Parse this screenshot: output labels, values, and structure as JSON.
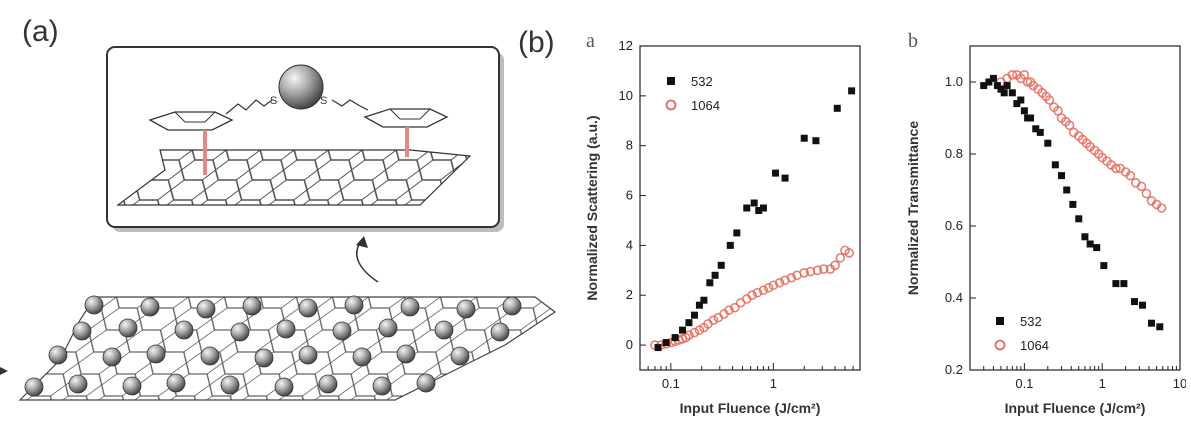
{
  "figure": {
    "panel_a_label": "(a)",
    "panel_b_label": "(b)",
    "sub_a": "a",
    "sub_b": "b",
    "inset_sulfur_left": "S",
    "inset_sulfur_right": "S"
  },
  "chart_data": [
    {
      "type": "scatter",
      "xscale": "log",
      "xlabel": "Input Fluence (J/cm²)",
      "ylabel": "Normalized Scattering (a.u.)",
      "xlim": [
        0.05,
        7
      ],
      "ylim": [
        -1,
        12
      ],
      "x_ticks": [
        0.1,
        1
      ],
      "x_tick_labels": [
        "0.1",
        "1"
      ],
      "y_ticks": [
        0,
        2,
        4,
        6,
        8,
        10,
        12
      ],
      "y_tick_labels": [
        "0",
        "2",
        "4",
        "6",
        "8",
        "10",
        "12"
      ],
      "legend_placement": "top-left",
      "series": [
        {
          "name": "532",
          "color": "#111111",
          "marker": "square",
          "points": [
            [
              0.075,
              -0.1
            ],
            [
              0.09,
              0.1
            ],
            [
              0.11,
              0.3
            ],
            [
              0.13,
              0.6
            ],
            [
              0.15,
              0.9
            ],
            [
              0.17,
              1.2
            ],
            [
              0.19,
              1.6
            ],
            [
              0.21,
              1.8
            ],
            [
              0.24,
              2.5
            ],
            [
              0.27,
              2.8
            ],
            [
              0.31,
              3.2
            ],
            [
              0.38,
              4.0
            ],
            [
              0.44,
              4.5
            ],
            [
              0.55,
              5.5
            ],
            [
              0.65,
              5.7
            ],
            [
              0.72,
              5.4
            ],
            [
              0.8,
              5.5
            ],
            [
              1.05,
              6.9
            ],
            [
              1.3,
              6.7
            ],
            [
              2.0,
              8.3
            ],
            [
              2.6,
              8.2
            ],
            [
              4.2,
              9.5
            ],
            [
              5.8,
              10.2
            ]
          ]
        },
        {
          "name": "1064",
          "color": "#e36a5c",
          "marker": "circle",
          "points": [
            [
              0.07,
              0.0
            ],
            [
              0.08,
              0.0
            ],
            [
              0.09,
              0.05
            ],
            [
              0.1,
              0.1
            ],
            [
              0.11,
              0.15
            ],
            [
              0.12,
              0.2
            ],
            [
              0.13,
              0.25
            ],
            [
              0.14,
              0.3
            ],
            [
              0.15,
              0.4
            ],
            [
              0.17,
              0.5
            ],
            [
              0.19,
              0.6
            ],
            [
              0.21,
              0.7
            ],
            [
              0.23,
              0.85
            ],
            [
              0.26,
              1.0
            ],
            [
              0.29,
              1.1
            ],
            [
              0.33,
              1.25
            ],
            [
              0.37,
              1.4
            ],
            [
              0.42,
              1.5
            ],
            [
              0.48,
              1.7
            ],
            [
              0.55,
              1.85
            ],
            [
              0.62,
              2.0
            ],
            [
              0.7,
              2.1
            ],
            [
              0.8,
              2.2
            ],
            [
              0.9,
              2.3
            ],
            [
              1.0,
              2.4
            ],
            [
              1.15,
              2.5
            ],
            [
              1.3,
              2.6
            ],
            [
              1.5,
              2.7
            ],
            [
              1.7,
              2.8
            ],
            [
              2.0,
              2.9
            ],
            [
              2.3,
              2.95
            ],
            [
              2.7,
              3.0
            ],
            [
              3.1,
              3.05
            ],
            [
              3.6,
              3.05
            ],
            [
              4.0,
              3.2
            ],
            [
              4.5,
              3.5
            ],
            [
              5.0,
              3.8
            ],
            [
              5.5,
              3.7
            ]
          ]
        }
      ]
    },
    {
      "type": "scatter",
      "xscale": "log",
      "xlabel": "Input Fluence (J/cm²)",
      "ylabel": "Normalized Transmittance",
      "xlim": [
        0.02,
        10
      ],
      "ylim": [
        0.2,
        1.1
      ],
      "x_ticks": [
        0.1,
        1,
        10
      ],
      "x_tick_labels": [
        "0.1",
        "1",
        "10"
      ],
      "y_ticks": [
        0.2,
        0.4,
        0.6,
        0.8,
        1.0
      ],
      "y_tick_labels": [
        "0.2",
        "0.4",
        "0.6",
        "0.8",
        "1.0"
      ],
      "legend_placement": "bottom-left",
      "series": [
        {
          "name": "532",
          "color": "#111111",
          "marker": "square",
          "points": [
            [
              0.03,
              0.99
            ],
            [
              0.035,
              1.0
            ],
            [
              0.04,
              1.01
            ],
            [
              0.045,
              0.99
            ],
            [
              0.05,
              0.98
            ],
            [
              0.055,
              0.97
            ],
            [
              0.06,
              0.99
            ],
            [
              0.07,
              0.97
            ],
            [
              0.08,
              0.94
            ],
            [
              0.09,
              0.95
            ],
            [
              0.1,
              0.92
            ],
            [
              0.11,
              0.9
            ],
            [
              0.12,
              0.9
            ],
            [
              0.14,
              0.87
            ],
            [
              0.16,
              0.86
            ],
            [
              0.2,
              0.83
            ],
            [
              0.25,
              0.77
            ],
            [
              0.3,
              0.74
            ],
            [
              0.35,
              0.7
            ],
            [
              0.42,
              0.66
            ],
            [
              0.5,
              0.62
            ],
            [
              0.6,
              0.57
            ],
            [
              0.7,
              0.55
            ],
            [
              0.85,
              0.54
            ],
            [
              1.05,
              0.49
            ],
            [
              1.5,
              0.44
            ],
            [
              1.9,
              0.44
            ],
            [
              2.6,
              0.39
            ],
            [
              3.3,
              0.38
            ],
            [
              4.3,
              0.33
            ],
            [
              5.5,
              0.32
            ]
          ]
        },
        {
          "name": "1064",
          "color": "#e36a5c",
          "marker": "circle",
          "points": [
            [
              0.05,
              1.0
            ],
            [
              0.06,
              1.01
            ],
            [
              0.07,
              1.02
            ],
            [
              0.08,
              1.02
            ],
            [
              0.09,
              1.01
            ],
            [
              0.1,
              1.02
            ],
            [
              0.11,
              1.0
            ],
            [
              0.12,
              1.0
            ],
            [
              0.13,
              0.99
            ],
            [
              0.15,
              0.98
            ],
            [
              0.17,
              0.97
            ],
            [
              0.19,
              0.96
            ],
            [
              0.21,
              0.95
            ],
            [
              0.24,
              0.93
            ],
            [
              0.27,
              0.92
            ],
            [
              0.3,
              0.9
            ],
            [
              0.34,
              0.89
            ],
            [
              0.38,
              0.88
            ],
            [
              0.43,
              0.86
            ],
            [
              0.5,
              0.85
            ],
            [
              0.56,
              0.84
            ],
            [
              0.63,
              0.83
            ],
            [
              0.7,
              0.82
            ],
            [
              0.8,
              0.81
            ],
            [
              0.9,
              0.8
            ],
            [
              1.0,
              0.79
            ],
            [
              1.15,
              0.78
            ],
            [
              1.3,
              0.77
            ],
            [
              1.5,
              0.76
            ],
            [
              1.7,
              0.76
            ],
            [
              2.0,
              0.75
            ],
            [
              2.3,
              0.74
            ],
            [
              2.7,
              0.72
            ],
            [
              3.2,
              0.71
            ],
            [
              3.7,
              0.69
            ],
            [
              4.3,
              0.67
            ],
            [
              5.0,
              0.66
            ],
            [
              5.8,
              0.65
            ]
          ]
        }
      ]
    }
  ]
}
